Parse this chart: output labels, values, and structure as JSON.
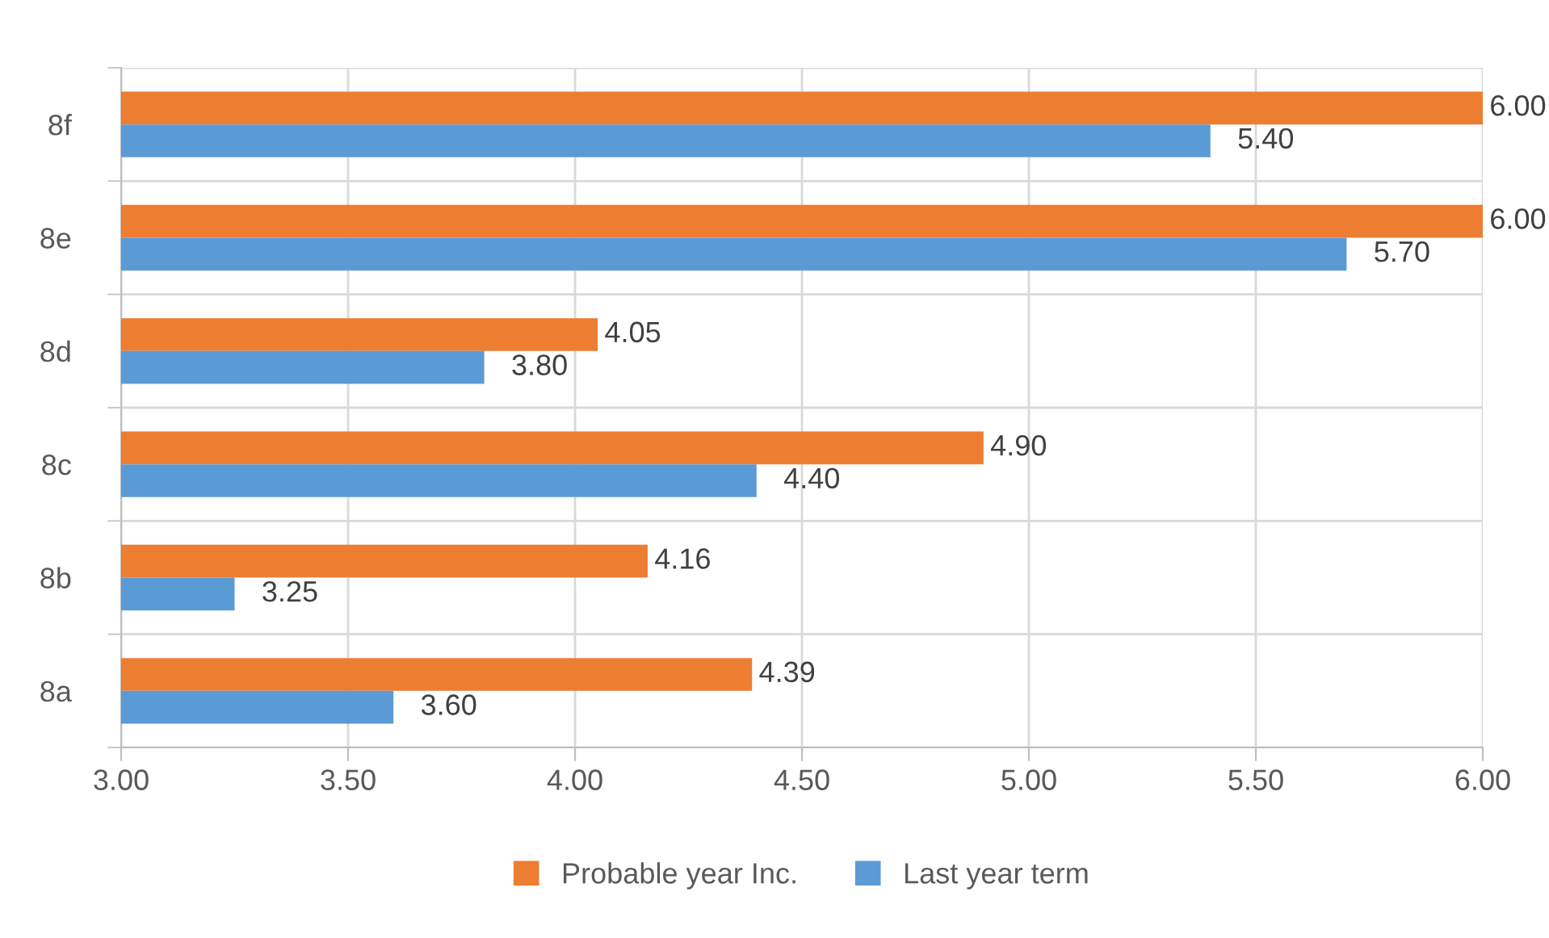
{
  "chart_data": {
    "type": "bar",
    "orientation": "horizontal",
    "categories": [
      "8f",
      "8e",
      "8d",
      "8c",
      "8b",
      "8a"
    ],
    "series": [
      {
        "name": "Probable year Inc.",
        "color": "#ed7d31",
        "values": [
          6.0,
          6.0,
          4.05,
          4.9,
          4.16,
          4.39
        ],
        "value_labels": [
          "6.00",
          "6.00",
          "4.05",
          "4.90",
          "4.16",
          "4.39"
        ]
      },
      {
        "name": "Last year term",
        "color": "#5b9bd5",
        "values": [
          5.4,
          5.7,
          3.8,
          4.4,
          3.25,
          3.6
        ],
        "value_labels": [
          "5.40",
          "5.70",
          "3.80",
          "4.40",
          "3.25",
          "3.60"
        ]
      }
    ],
    "xlim": [
      3,
      6
    ],
    "xticks": [
      {
        "value": 3,
        "label": "3.00"
      },
      {
        "value": 3.5,
        "label": "3.50"
      },
      {
        "value": 4,
        "label": "4.00"
      },
      {
        "value": 4.5,
        "label": "4.50"
      },
      {
        "value": 5,
        "label": "5.00"
      },
      {
        "value": 5.5,
        "label": "5.50"
      },
      {
        "value": 6,
        "label": "6.00"
      }
    ],
    "grid": true,
    "legend": "bottom"
  }
}
